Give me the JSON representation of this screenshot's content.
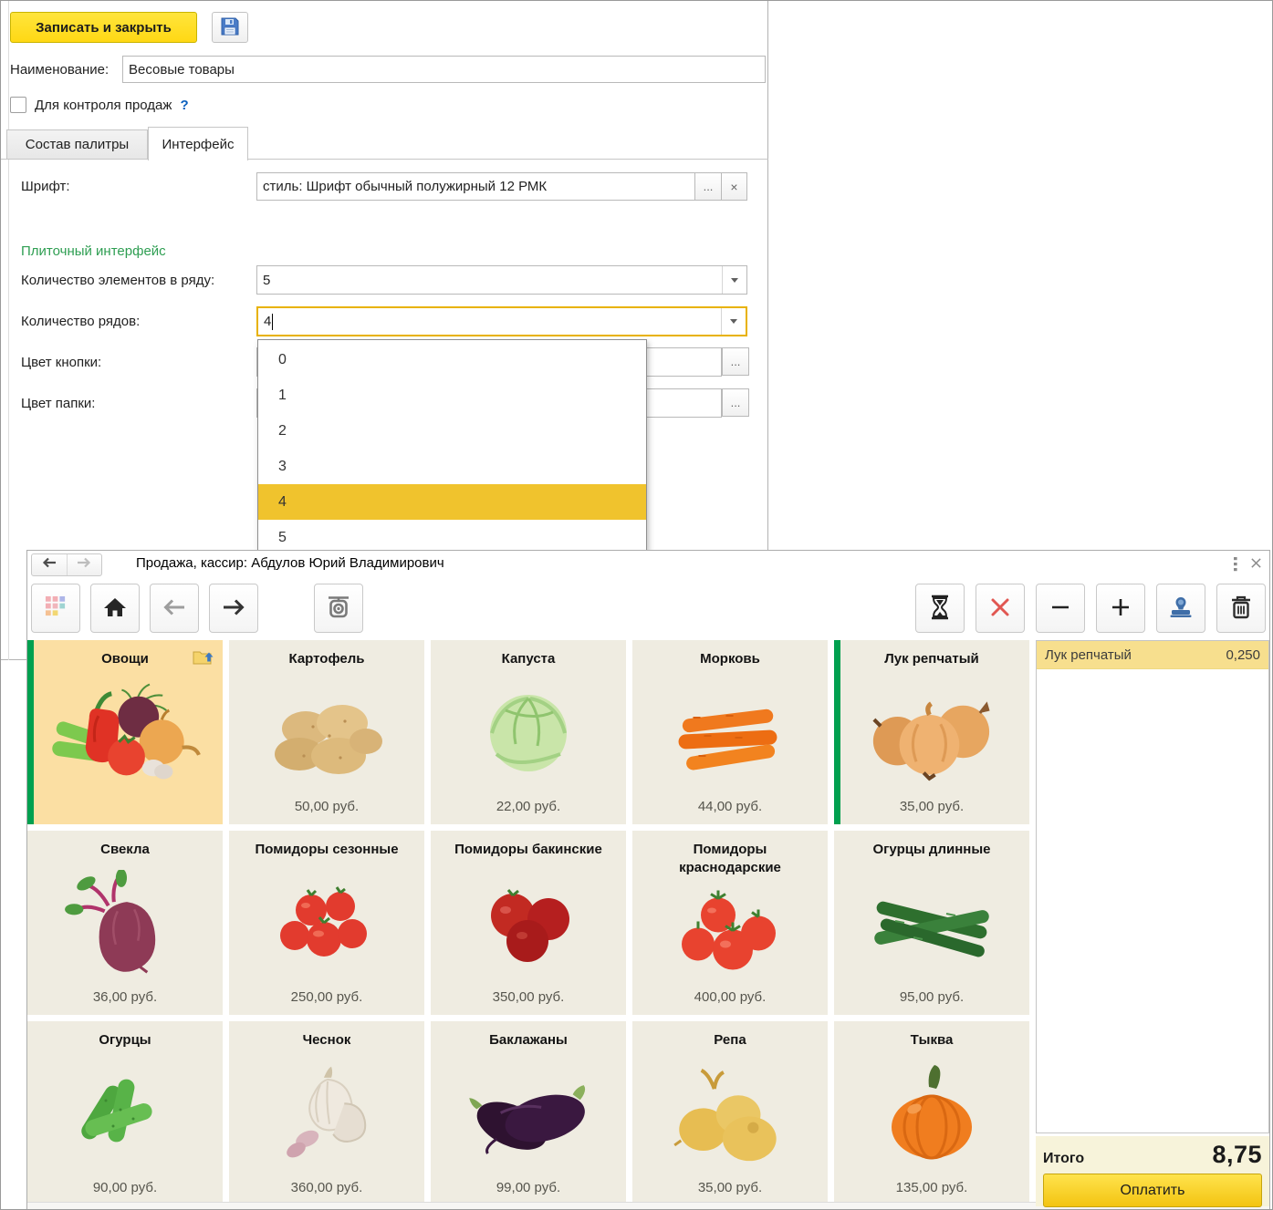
{
  "colors": {
    "accent_green": "#00A04F",
    "selection_gold": "#F0C32D",
    "tile_bg": "#EFECE1",
    "folder_tile_bg": "#FBDFA3",
    "receipt_highlight": "#F7DF8E",
    "primary_yellow": "#FFDE21",
    "focus_border": "#E8B200",
    "section_green": "#2E9E52"
  },
  "form": {
    "save_close_label": "Записать и закрыть",
    "save_icon": "floppy-disk-icon",
    "name_label": "Наименование:",
    "name_value": "Весовые товары",
    "sales_control_label": "Для контроля продаж",
    "help_label": "?",
    "tabs": [
      {
        "label": "Состав палитры",
        "active": false
      },
      {
        "label": "Интерфейс",
        "active": true
      }
    ],
    "font_label": "Шрифт:",
    "font_value": "стиль: Шрифт обычный полужирный 12 РМК",
    "ellipsis_label": "...",
    "clear_label": "×",
    "section_label": "Плиточный интерфейс",
    "items_per_row_label": "Количество элементов в ряду:",
    "items_per_row_value": "5",
    "row_count_label": "Количество рядов:",
    "row_count_value": "4",
    "button_color_label": "Цвет кнопки:",
    "folder_color_label": "Цвет папки:",
    "dropdown": {
      "options": [
        "0",
        "1",
        "2",
        "3",
        "4",
        "5"
      ],
      "selected": "4"
    }
  },
  "pos": {
    "title": "Продажа, кассир: Абдулов Юрий Владимирович",
    "window_icons": [
      "more-dots-icon",
      "close-icon"
    ],
    "nav_icons": [
      "back-icon",
      "forward-icon"
    ],
    "toolbar_left": [
      "apps-grid-icon",
      "home-icon",
      "arrow-left-icon",
      "arrow-right-icon"
    ],
    "toolbar_scale": "scale-icon",
    "toolbar_right": [
      "hourglass-icon",
      "cancel-icon",
      "minus-icon",
      "plus-icon",
      "stamp-icon",
      "trash-icon"
    ],
    "tiles": [
      {
        "title": "Овощи",
        "price": "",
        "image": "vegetables-mix-image",
        "folder": true,
        "accent": true,
        "badge": "folder-up-icon"
      },
      {
        "title": "Картофель",
        "price": "50,00 руб.",
        "image": "potato-image"
      },
      {
        "title": "Капуста",
        "price": "22,00 руб.",
        "image": "cabbage-image"
      },
      {
        "title": "Морковь",
        "price": "44,00 руб.",
        "image": "carrot-image"
      },
      {
        "title": "Лук репчатый",
        "price": "35,00 руб.",
        "image": "onion-image",
        "accent": true
      },
      {
        "title": "Свекла",
        "price": "36,00 руб.",
        "image": "beet-image"
      },
      {
        "title": "Помидоры сезонные",
        "price": "250,00 руб.",
        "image": "tomato-seasonal-image"
      },
      {
        "title": "Помидоры бакинские",
        "price": "350,00 руб.",
        "image": "tomato-baku-image"
      },
      {
        "title": "Помидоры краснодарские",
        "price": "400,00 руб.",
        "image": "tomato-krasnodar-image"
      },
      {
        "title": "Огурцы длинные",
        "price": "95,00 руб.",
        "image": "cucumber-long-image"
      },
      {
        "title": "Огурцы",
        "price": "90,00 руб.",
        "image": "cucumber-image"
      },
      {
        "title": "Чеснок",
        "price": "360,00 руб.",
        "image": "garlic-image"
      },
      {
        "title": "Баклажаны",
        "price": "99,00 руб.",
        "image": "eggplant-image"
      },
      {
        "title": "Репа",
        "price": "35,00 руб.",
        "image": "turnip-image"
      },
      {
        "title": "Тыква",
        "price": "135,00 руб.",
        "image": "pumpkin-image"
      }
    ],
    "receipt": {
      "rows": [
        {
          "name": "Лук репчатый",
          "qty": "0,250"
        }
      ],
      "total_label": "Итого",
      "total_value": "8,75",
      "pay_label": "Оплатить"
    }
  }
}
